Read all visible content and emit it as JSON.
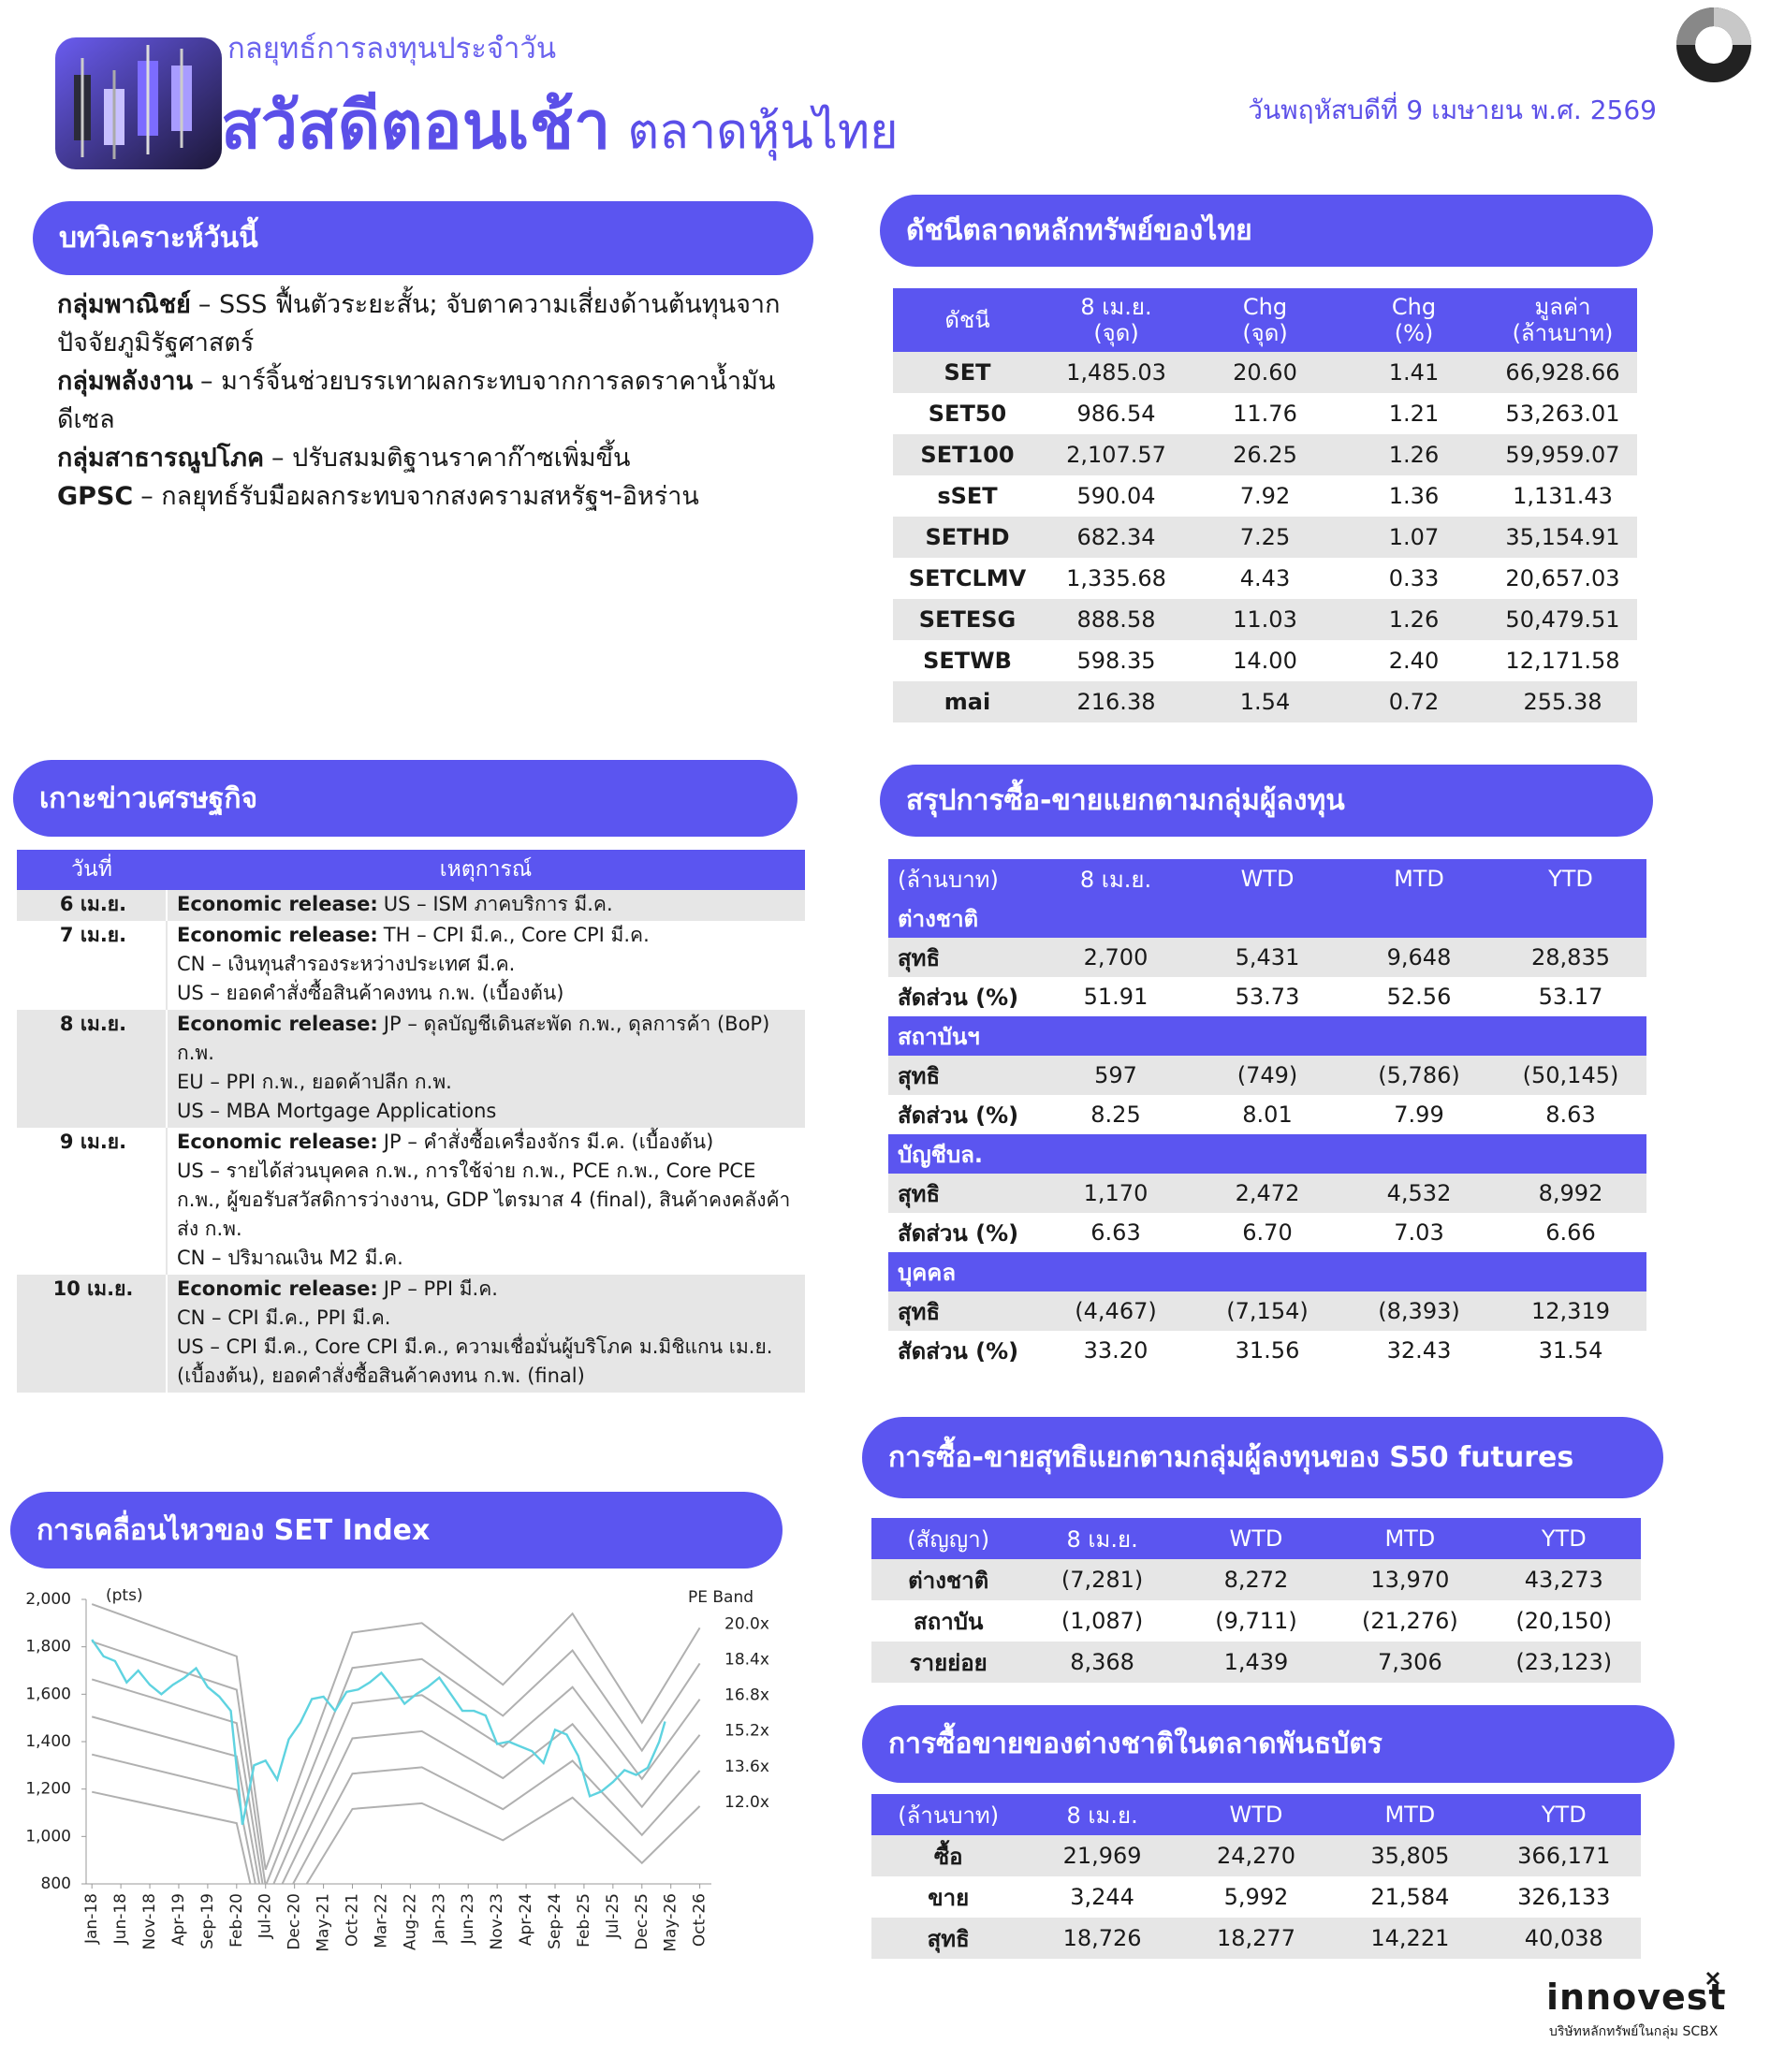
{
  "header": {
    "subtitle": "กลยุทธ์การลงทุนประจำวัน",
    "title_bold": "สวัสดีตอนเช้า",
    "title_light": "ตลาดหุ้นไทย",
    "date": "วันพฤหัสบดีที่ 9 เมษายน พ.ศ. 2569"
  },
  "analysis": {
    "title": "บทวิเคราะห์วันนี้",
    "items": [
      {
        "label": "กลุ่มพาณิชย์",
        "text": "– SSS ฟื้นตัวระยะสั้น; จับตาความเสี่ยงด้านต้นทุนจากปัจจัยภูมิรัฐศาสตร์"
      },
      {
        "label": "กลุ่มพลังงาน",
        "text": "– มาร์จิ้นช่วยบรรเทาผลกระทบจากการลดราคาน้ำมันดีเซล"
      },
      {
        "label": "กลุ่มสาธารณูปโภค",
        "text": "– ปรับสมมติฐานราคาก๊าซเพิ่มขึ้น"
      },
      {
        "label": "GPSC",
        "text": "– กลยุทธ์รับมือผลกระทบจากสงครามสหรัฐฯ-อิหร่าน"
      }
    ]
  },
  "indices": {
    "title": "ดัชนีตลาดหลักทรัพย์ของไทย",
    "columns": [
      "ดัชนี",
      "8 เม.ย.\n(จุด)",
      "Chg\n(จุด)",
      "Chg\n(%)",
      "มูลค่า\n(ล้านบาท)"
    ],
    "rows": [
      [
        "SET",
        "1,485.03",
        "20.60",
        "1.41",
        "66,928.66"
      ],
      [
        "SET50",
        "986.54",
        "11.76",
        "1.21",
        "53,263.01"
      ],
      [
        "SET100",
        "2,107.57",
        "26.25",
        "1.26",
        "59,959.07"
      ],
      [
        "sSET",
        "590.04",
        "7.92",
        "1.36",
        "1,131.43"
      ],
      [
        "SETHD",
        "682.34",
        "7.25",
        "1.07",
        "35,154.91"
      ],
      [
        "SETCLMV",
        "1,335.68",
        "4.43",
        "0.33",
        "20,657.03"
      ],
      [
        "SETESG",
        "888.58",
        "11.03",
        "1.26",
        "50,479.51"
      ],
      [
        "SETWB",
        "598.35",
        "14.00",
        "2.40",
        "12,171.58"
      ],
      [
        "mai",
        "216.38",
        "1.54",
        "0.72",
        "255.38"
      ]
    ]
  },
  "econ": {
    "title": "เกาะข่าวเศรษฐกิจ",
    "columns": [
      "วันที่",
      "เหตุการณ์"
    ],
    "rows": [
      {
        "date": "6 เม.ย.",
        "lines": [
          {
            "label": "Economic release:",
            "text": "US – ISM ภาคบริการ มี.ค."
          }
        ]
      },
      {
        "date": "7 เม.ย.",
        "lines": [
          {
            "label": "Economic release:",
            "text": "TH – CPI มี.ค., Core CPI มี.ค."
          },
          {
            "text": "CN – เงินทุนสำรองระหว่างประเทศ มี.ค."
          },
          {
            "text": "US – ยอดคำสั่งซื้อสินค้าคงทน ก.พ. (เบื้องต้น)"
          }
        ]
      },
      {
        "date": "8 เม.ย.",
        "lines": [
          {
            "label": "Economic release:",
            "text": "JP – ดุลบัญชีเดินสะพัด ก.พ., ดุลการค้า (BoP) ก.พ."
          },
          {
            "text": "EU – PPI ก.พ., ยอดค้าปลีก ก.พ."
          },
          {
            "text": "US – MBA Mortgage Applications"
          }
        ]
      },
      {
        "date": "9 เม.ย.",
        "lines": [
          {
            "label": "Economic release:",
            "text": "JP – คำสั่งซื้อเครื่องจักร มี.ค. (เบื้องต้น)"
          },
          {
            "text": "US – รายได้ส่วนบุคคล ก.พ., การใช้จ่าย ก.พ., PCE ก.พ., Core PCE ก.พ., ผู้ขอรับสวัสดิการว่างงาน, GDP ไตรมาส 4 (final), สินค้าคงคลังค้าส่ง ก.พ."
          },
          {
            "text": "CN – ปริมาณเงิน M2 มี.ค."
          }
        ]
      },
      {
        "date": "10 เม.ย.",
        "lines": [
          {
            "label": "Economic release:",
            "text": "JP – PPI มี.ค."
          },
          {
            "text": "CN – CPI มี.ค., PPI มี.ค."
          },
          {
            "text": "US – CPI มี.ค., Core CPI มี.ค., ความเชื่อมั่นผู้บริโภค ม.มิชิแกน เม.ย. (เบื้องต้น), ยอดคำสั่งซื้อสินค้าคงทน ก.พ. (final)"
          }
        ]
      }
    ]
  },
  "investors": {
    "title": "สรุปการซื้อ-ขายแยกตามกลุ่มผู้ลงทุน",
    "columns": [
      "(ล้านบาท)",
      "8 เม.ย.",
      "WTD",
      "MTD",
      "YTD"
    ],
    "groups": [
      {
        "name": "ต่างชาติ",
        "rows": [
          [
            "สุทธิ",
            "2,700",
            "5,431",
            "9,648",
            "28,835"
          ],
          [
            "สัดส่วน (%)",
            "51.91",
            "53.73",
            "52.56",
            "53.17"
          ]
        ]
      },
      {
        "name": "สถาบันฯ",
        "rows": [
          [
            "สุทธิ",
            "597",
            "(749)",
            "(5,786)",
            "(50,145)"
          ],
          [
            "สัดส่วน (%)",
            "8.25",
            "8.01",
            "7.99",
            "8.63"
          ]
        ]
      },
      {
        "name": "บัญชีบล.",
        "rows": [
          [
            "สุทธิ",
            "1,170",
            "2,472",
            "4,532",
            "8,992"
          ],
          [
            "สัดส่วน (%)",
            "6.63",
            "6.70",
            "7.03",
            "6.66"
          ]
        ]
      },
      {
        "name": "บุคคล",
        "rows": [
          [
            "สุทธิ",
            "(4,467)",
            "(7,154)",
            "(8,393)",
            "12,319"
          ],
          [
            "สัดส่วน (%)",
            "33.20",
            "31.56",
            "32.43",
            "31.54"
          ]
        ]
      }
    ]
  },
  "futures": {
    "title": "การซื้อ-ขายสุทธิแยกตามกลุ่มผู้ลงทุนของ S50 futures",
    "columns": [
      "(สัญญา)",
      "8 เม.ย.",
      "WTD",
      "MTD",
      "YTD"
    ],
    "rows": [
      [
        "ต่างชาติ",
        "(7,281)",
        "8,272",
        "13,970",
        "43,273"
      ],
      [
        "สถาบัน",
        "(1,087)",
        "(9,711)",
        "(21,276)",
        "(20,150)"
      ],
      [
        "รายย่อย",
        "8,368",
        "1,439",
        "7,306",
        "(23,123)"
      ]
    ]
  },
  "bonds": {
    "title": "การซื้อขายของต่างชาติในตลาดพันธบัตร",
    "columns": [
      "(ล้านบาท)",
      "8 เม.ย.",
      "WTD",
      "MTD",
      "YTD"
    ],
    "rows": [
      [
        "ซื้อ",
        "21,969",
        "24,270",
        "35,805",
        "366,171"
      ],
      [
        "ขาย",
        "3,244",
        "5,992",
        "21,584",
        "326,133"
      ],
      [
        "สุทธิ",
        "18,726",
        "18,277",
        "14,221",
        "40,038"
      ]
    ]
  },
  "chart_data": {
    "type": "line",
    "title": "การเคลื่อนไหวของ SET Index",
    "y_label": "(pts)",
    "band_label": "PE Band",
    "ylim": [
      800,
      2000
    ],
    "yticks": [
      {
        "value": 800,
        "label": "800"
      },
      {
        "value": 1000,
        "label": "1,000"
      },
      {
        "value": 1200,
        "label": "1,200"
      },
      {
        "value": 1400,
        "label": "1,400"
      },
      {
        "value": 1600,
        "label": "1,600"
      },
      {
        "value": 1800,
        "label": "1,800"
      },
      {
        "value": 2000,
        "label": "2,000"
      }
    ],
    "xlim": [
      "2017-12",
      "2026-12"
    ],
    "xticks": [
      {
        "value": "2018-01",
        "label": "Jan-18"
      },
      {
        "value": "2018-06",
        "label": "Jun-18"
      },
      {
        "value": "2018-11",
        "label": "Nov-18"
      },
      {
        "value": "2019-04",
        "label": "Apr-19"
      },
      {
        "value": "2019-09",
        "label": "Sep-19"
      },
      {
        "value": "2020-02",
        "label": "Feb-20"
      },
      {
        "value": "2020-07",
        "label": "Jul-20"
      },
      {
        "value": "2020-12",
        "label": "Dec-20"
      },
      {
        "value": "2021-05",
        "label": "May-21"
      },
      {
        "value": "2021-10",
        "label": "Oct-21"
      },
      {
        "value": "2022-03",
        "label": "Mar-22"
      },
      {
        "value": "2022-08",
        "label": "Aug-22"
      },
      {
        "value": "2023-01",
        "label": "Jan-23"
      },
      {
        "value": "2023-06",
        "label": "Jun-23"
      },
      {
        "value": "2023-11",
        "label": "Nov-23"
      },
      {
        "value": "2024-04",
        "label": "Apr-24"
      },
      {
        "value": "2024-09",
        "label": "Sep-24"
      },
      {
        "value": "2025-02",
        "label": "Feb-25"
      },
      {
        "value": "2025-07",
        "label": "Jul-25"
      },
      {
        "value": "2025-12",
        "label": "Dec-25"
      },
      {
        "value": "2026-05",
        "label": "May-26"
      },
      {
        "value": "2026-10",
        "label": "Oct-26"
      }
    ],
    "series": [
      {
        "name": "20.0x",
        "color": "#b0b0b0",
        "x": [
          "2018-01",
          "2020-02",
          "2020-07",
          "2021-10",
          "2022-10",
          "2023-12",
          "2024-12",
          "2025-12",
          "2026-10"
        ],
        "values": [
          1980,
          1760,
          860,
          1860,
          1900,
          1640,
          1940,
          1480,
          1880
        ]
      },
      {
        "name": "18.4x",
        "color": "#b0b0b0",
        "x": [
          "2018-01",
          "2020-02",
          "2020-07",
          "2021-10",
          "2022-10",
          "2023-12",
          "2024-12",
          "2025-12",
          "2026-10"
        ],
        "values": [
          1822,
          1619,
          791,
          1711,
          1748,
          1509,
          1785,
          1362,
          1730
        ]
      },
      {
        "name": "16.8x",
        "color": "#b0b0b0",
        "x": [
          "2018-01",
          "2020-02",
          "2020-07",
          "2021-10",
          "2022-10",
          "2023-12",
          "2024-12",
          "2025-12",
          "2026-10"
        ],
        "values": [
          1663,
          1478,
          722,
          1562,
          1596,
          1378,
          1630,
          1243,
          1579
        ]
      },
      {
        "name": "15.2x",
        "color": "#b0b0b0",
        "x": [
          "2018-01",
          "2020-02",
          "2020-07",
          "2021-10",
          "2022-10",
          "2023-12",
          "2024-12",
          "2025-12",
          "2026-10"
        ],
        "values": [
          1505,
          1338,
          654,
          1414,
          1444,
          1246,
          1474,
          1125,
          1429
        ]
      },
      {
        "name": "13.6x",
        "color": "#b0b0b0",
        "x": [
          "2018-01",
          "2020-02",
          "2020-07",
          "2021-10",
          "2022-10",
          "2023-12",
          "2024-12",
          "2025-12",
          "2026-10"
        ],
        "values": [
          1346,
          1197,
          585,
          1265,
          1292,
          1115,
          1319,
          1006,
          1278
        ]
      },
      {
        "name": "12.0x",
        "color": "#b0b0b0",
        "x": [
          "2018-01",
          "2020-02",
          "2020-07",
          "2021-10",
          "2022-10",
          "2023-12",
          "2024-12",
          "2025-12",
          "2026-10"
        ],
        "values": [
          1188,
          1056,
          516,
          1116,
          1140,
          984,
          1164,
          888,
          1128
        ]
      },
      {
        "color": "#5fd3e0",
        "x": [
          "2018-01",
          "2018-03",
          "2018-05",
          "2018-07",
          "2018-09",
          "2018-11",
          "2019-01",
          "2019-03",
          "2019-05",
          "2019-07",
          "2019-09",
          "2019-11",
          "2020-01",
          "2020-03",
          "2020-05",
          "2020-07",
          "2020-09",
          "2020-11",
          "2021-01",
          "2021-03",
          "2021-05",
          "2021-07",
          "2021-09",
          "2021-11",
          "2022-01",
          "2022-03",
          "2022-05",
          "2022-07",
          "2022-09",
          "2022-11",
          "2023-01",
          "2023-03",
          "2023-05",
          "2023-07",
          "2023-09",
          "2023-11",
          "2024-01",
          "2024-03",
          "2024-05",
          "2024-07",
          "2024-09",
          "2024-11",
          "2025-01",
          "2025-03",
          "2025-05",
          "2025-07",
          "2025-09",
          "2025-11",
          "2026-01",
          "2026-03",
          "2026-04"
        ],
        "values": [
          1830,
          1760,
          1740,
          1650,
          1700,
          1640,
          1600,
          1640,
          1670,
          1710,
          1630,
          1590,
          1530,
          1050,
          1300,
          1320,
          1240,
          1410,
          1480,
          1580,
          1590,
          1530,
          1610,
          1620,
          1650,
          1690,
          1630,
          1560,
          1600,
          1630,
          1670,
          1600,
          1530,
          1530,
          1510,
          1390,
          1400,
          1380,
          1360,
          1310,
          1450,
          1430,
          1340,
          1170,
          1190,
          1230,
          1280,
          1260,
          1290,
          1400,
          1485
        ]
      }
    ]
  },
  "footer": {
    "brand": "innovest",
    "tagline": "บริษัทหลักทรัพย์ในกลุ่ม SCBX"
  }
}
